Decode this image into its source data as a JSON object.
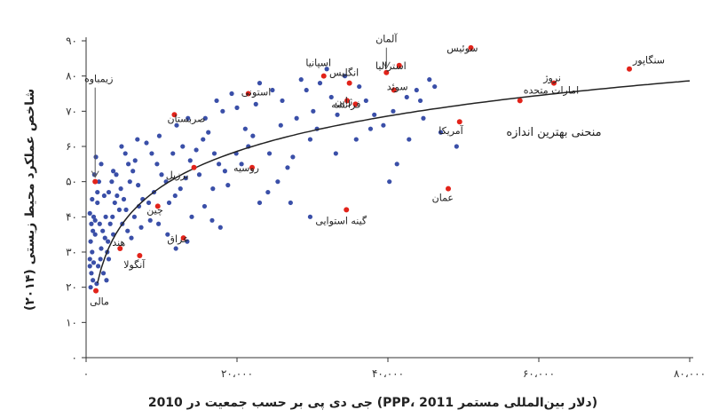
{
  "chart_data": {
    "type": "scatter",
    "title": "",
    "xlabel": "(دلار بین‌المللی مستمر PPP، 2011) جی دی پی بر حسب جمعیت در 2010",
    "ylabel": "شاخص عملکرد محیط زیستی (۲۰۱۴)",
    "xlim": [
      0,
      80000
    ],
    "ylim": [
      0,
      90
    ],
    "xticks": [
      0,
      20000,
      40000,
      60000,
      80000
    ],
    "xtick_labels": [
      "۰",
      "۲۰،۰۰۰",
      "۴۰،۰۰۰",
      "۶۰،۰۰۰",
      "۸۰،۰۰۰"
    ],
    "yticks": [
      0,
      10,
      20,
      30,
      40,
      50,
      60,
      70,
      80,
      90
    ],
    "ytick_labels": [
      "۰",
      "۱۰",
      "۲۰",
      "۳۰",
      "۴۰",
      "۵۰",
      "۶۰",
      "۷۰",
      "۸۰",
      "۹۰"
    ],
    "grid": false,
    "colors": {
      "other": "#3a4fa8",
      "highlight": "#e2231a",
      "curve": "#222222"
    },
    "fit_curve": {
      "label": "منحنی بهترین اندازه",
      "a": -84.5,
      "b": 14.45
    },
    "highlighted": [
      {
        "name": "زیمباوه",
        "x": 1200,
        "y": 50,
        "arrow": true
      },
      {
        "name": "مالی",
        "x": 1300,
        "y": 19
      },
      {
        "name": "آنگولا",
        "x": 7100,
        "y": 29
      },
      {
        "name": "هند",
        "x": 4500,
        "y": 31
      },
      {
        "name": "عراق",
        "x": 12900,
        "y": 34
      },
      {
        "name": "چین",
        "x": 9500,
        "y": 43
      },
      {
        "name": "برزیل",
        "x": 14300,
        "y": 54
      },
      {
        "name": "صربستان",
        "x": 11700,
        "y": 69
      },
      {
        "name": "روسیه",
        "x": 22000,
        "y": 54
      },
      {
        "name": "استونی",
        "x": 21500,
        "y": 75
      },
      {
        "name": "اسپانیا",
        "x": 31500,
        "y": 80
      },
      {
        "name": "انگلیس",
        "x": 34900,
        "y": 78
      },
      {
        "name": "ژاپن",
        "x": 34600,
        "y": 73
      },
      {
        "name": "فرانسه",
        "x": 35700,
        "y": 72
      },
      {
        "name": "سوئد",
        "x": 40800,
        "y": 76
      },
      {
        "name": "آلمان",
        "x": 39800,
        "y": 81,
        "arrow": true
      },
      {
        "name": "استرالیا",
        "x": 41500,
        "y": 83
      },
      {
        "name": "سوئیس",
        "x": 51000,
        "y": 88
      },
      {
        "name": "نروژ",
        "x": 62000,
        "y": 78
      },
      {
        "name": "سنگاپور",
        "x": 72000,
        "y": 82
      },
      {
        "name": "امارات متحده",
        "x": 57500,
        "y": 73
      },
      {
        "name": "آمریکا",
        "x": 49500,
        "y": 67
      },
      {
        "name": "عمان",
        "x": 48000,
        "y": 48
      },
      {
        "name": "گینه استوایی",
        "x": 34500,
        "y": 42
      }
    ],
    "points": [
      [
        500,
        26
      ],
      [
        500,
        28
      ],
      [
        700,
        24
      ],
      [
        800,
        30
      ],
      [
        600,
        33
      ],
      [
        900,
        36
      ],
      [
        700,
        38
      ],
      [
        1000,
        40
      ],
      [
        500,
        41
      ],
      [
        1200,
        39
      ],
      [
        1500,
        44
      ],
      [
        800,
        45
      ],
      [
        1500,
        47
      ],
      [
        1700,
        50
      ],
      [
        1100,
        52
      ],
      [
        2000,
        55
      ],
      [
        1300,
        57
      ],
      [
        2200,
        36
      ],
      [
        2500,
        34
      ],
      [
        2800,
        30
      ],
      [
        1900,
        28
      ],
      [
        1600,
        26
      ],
      [
        2300,
        24
      ],
      [
        2700,
        22
      ],
      [
        3000,
        28
      ],
      [
        3200,
        38
      ],
      [
        3500,
        40
      ],
      [
        3800,
        44
      ],
      [
        4100,
        46
      ],
      [
        4400,
        42
      ],
      [
        3600,
        35
      ],
      [
        2900,
        33
      ],
      [
        2000,
        31
      ],
      [
        1400,
        21
      ],
      [
        900,
        22
      ],
      [
        600,
        20
      ],
      [
        1000,
        27
      ],
      [
        1200,
        35
      ],
      [
        1800,
        38
      ],
      [
        2600,
        40
      ],
      [
        3000,
        47
      ],
      [
        3400,
        50
      ],
      [
        4000,
        52
      ],
      [
        4600,
        48
      ],
      [
        5000,
        45
      ],
      [
        5300,
        42
      ],
      [
        4800,
        38
      ],
      [
        5500,
        36
      ],
      [
        6000,
        34
      ],
      [
        6400,
        40
      ],
      [
        7000,
        43
      ],
      [
        7500,
        45
      ],
      [
        5800,
        50
      ],
      [
        6200,
        53
      ],
      [
        6500,
        56
      ],
      [
        5200,
        58
      ],
      [
        4700,
        60
      ],
      [
        6800,
        62
      ],
      [
        8000,
        61
      ],
      [
        8700,
        58
      ],
      [
        9400,
        55
      ],
      [
        10000,
        52
      ],
      [
        10600,
        50
      ],
      [
        9000,
        47
      ],
      [
        8300,
        44
      ],
      [
        11000,
        44
      ],
      [
        11800,
        46
      ],
      [
        12500,
        48
      ],
      [
        13200,
        51
      ],
      [
        13800,
        56
      ],
      [
        14600,
        59
      ],
      [
        15500,
        62
      ],
      [
        16200,
        64
      ],
      [
        17000,
        58
      ],
      [
        17600,
        55
      ],
      [
        18400,
        53
      ],
      [
        18800,
        49
      ],
      [
        16800,
        48
      ],
      [
        15000,
        52
      ],
      [
        12800,
        60
      ],
      [
        11500,
        58
      ],
      [
        9700,
        63
      ],
      [
        13500,
        68
      ],
      [
        12000,
        66
      ],
      [
        15800,
        68
      ],
      [
        17300,
        73
      ],
      [
        18100,
        70
      ],
      [
        19300,
        75
      ],
      [
        20000,
        71
      ],
      [
        22500,
        72
      ],
      [
        23000,
        78
      ],
      [
        24700,
        76
      ],
      [
        26000,
        73
      ],
      [
        28500,
        79
      ],
      [
        29200,
        76
      ],
      [
        31000,
        78
      ],
      [
        32500,
        74
      ],
      [
        33300,
        69
      ],
      [
        30600,
        65
      ],
      [
        29700,
        62
      ],
      [
        27400,
        57
      ],
      [
        26700,
        54
      ],
      [
        25400,
        50
      ],
      [
        24100,
        47
      ],
      [
        23000,
        44
      ],
      [
        21500,
        60
      ],
      [
        19900,
        58
      ],
      [
        25800,
        66
      ],
      [
        27900,
        68
      ],
      [
        30100,
        70
      ],
      [
        31900,
        82
      ],
      [
        34300,
        80
      ],
      [
        36200,
        77
      ],
      [
        37100,
        73
      ],
      [
        38200,
        69
      ],
      [
        39400,
        66
      ],
      [
        40700,
        70
      ],
      [
        42500,
        74
      ],
      [
        43800,
        76
      ],
      [
        44300,
        73
      ],
      [
        45500,
        79
      ],
      [
        46200,
        77
      ],
      [
        47000,
        64
      ],
      [
        49100,
        60
      ],
      [
        41200,
        55
      ],
      [
        40200,
        50
      ],
      [
        29700,
        40
      ],
      [
        27100,
        44
      ],
      [
        33100,
        58
      ],
      [
        35800,
        62
      ],
      [
        37700,
        65
      ],
      [
        42800,
        62
      ],
      [
        44700,
        68
      ],
      [
        14000,
        40
      ],
      [
        9600,
        38
      ],
      [
        7300,
        37
      ],
      [
        8500,
        39
      ],
      [
        2400,
        46
      ],
      [
        3600,
        53
      ],
      [
        5600,
        55
      ],
      [
        6900,
        49
      ],
      [
        10800,
        35
      ],
      [
        11900,
        31
      ],
      [
        13400,
        33
      ],
      [
        15700,
        43
      ],
      [
        16700,
        39
      ],
      [
        17800,
        37
      ],
      [
        20600,
        55
      ],
      [
        21100,
        65
      ],
      [
        22100,
        63
      ],
      [
        24300,
        58
      ]
    ]
  }
}
